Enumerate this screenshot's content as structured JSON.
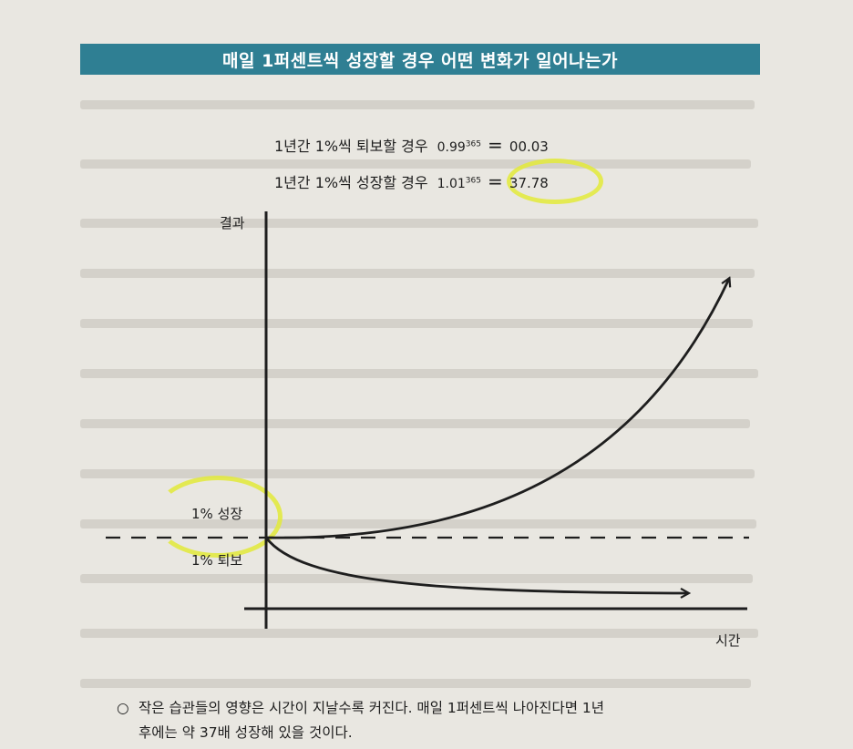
{
  "banner": {
    "title": "매일 1퍼센트씩 성장할 경우 어떤 변화가 일어나는가"
  },
  "equations": {
    "decline": {
      "label": "1년간 1%씩 퇴보할 경우",
      "base": "0.99",
      "exponent": "365",
      "equals": "=",
      "result": "00.03"
    },
    "growth": {
      "label": "1년간 1%씩 성장할 경우",
      "base": "1.01",
      "exponent": "365",
      "equals": "=",
      "result": "37.78"
    }
  },
  "graph": {
    "y_axis_label": "결과",
    "x_axis_label": "시간",
    "growth_label": "1% 성장",
    "decline_label": "1% 퇴보"
  },
  "caption": {
    "bullet": "○",
    "line1": "작은 습관들의 영향은 시간이 지날수록 커진다. 매일 1퍼센트씩 나아진다면 1년",
    "line2": "후에는 약 37배 성장해 있을 것이다."
  },
  "colors": {
    "banner": "#2f7f93",
    "highlight": "#e3ea3a",
    "ink": "#1e1e1e",
    "paper": "#e9e7e1"
  }
}
